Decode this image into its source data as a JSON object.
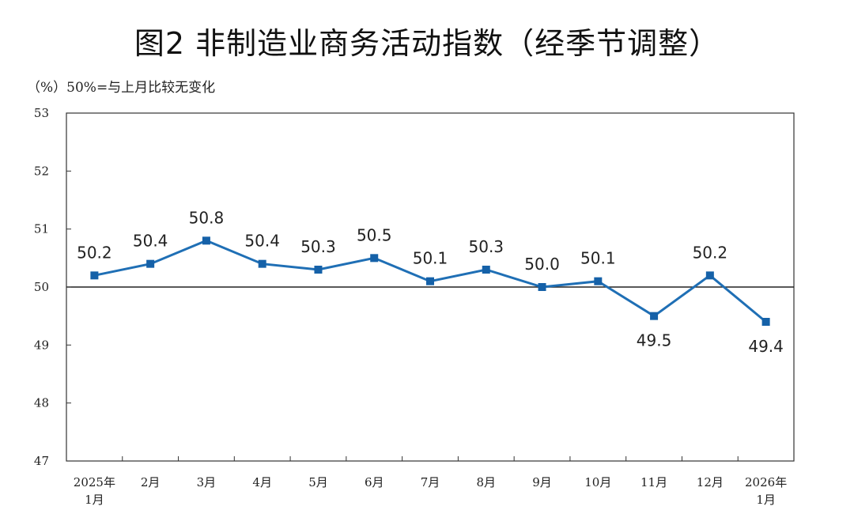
{
  "chart_data": {
    "type": "line",
    "title": "图2  非制造业商务活动指数（经季节调整）",
    "ylabel": "（%）50%=与上月比较无变化",
    "xlabel": "",
    "categories": [
      [
        "2025年",
        "1月"
      ],
      [
        "2月"
      ],
      [
        "3月"
      ],
      [
        "4月"
      ],
      [
        "5月"
      ],
      [
        "6月"
      ],
      [
        "7月"
      ],
      [
        "8月"
      ],
      [
        "9月"
      ],
      [
        "10月"
      ],
      [
        "11月"
      ],
      [
        "12月"
      ],
      [
        "2026年",
        "1月"
      ]
    ],
    "series": [
      {
        "name": "非制造业商务活动指数",
        "values": [
          50.2,
          50.4,
          50.8,
          50.4,
          50.3,
          50.5,
          50.1,
          50.3,
          50.0,
          50.1,
          49.5,
          50.2,
          49.4
        ],
        "labels": [
          "50.2",
          "50.4",
          "50.8",
          "50.4",
          "50.3",
          "50.5",
          "50.1",
          "50.3",
          "50.0",
          "50.1",
          "49.5",
          "50.2",
          "49.4"
        ],
        "label_position": [
          "above",
          "above",
          "above",
          "above",
          "above",
          "above",
          "above",
          "above",
          "above",
          "above",
          "below",
          "above",
          "below"
        ]
      }
    ],
    "ylim": [
      47,
      53
    ],
    "yticks": [
      "47",
      "48",
      "49",
      "50",
      "51",
      "52",
      "53"
    ],
    "reference_line": 50,
    "grid": false,
    "colors": {
      "line": "#1f6fb5",
      "marker": "#1561a8",
      "axis": "#333333"
    }
  }
}
